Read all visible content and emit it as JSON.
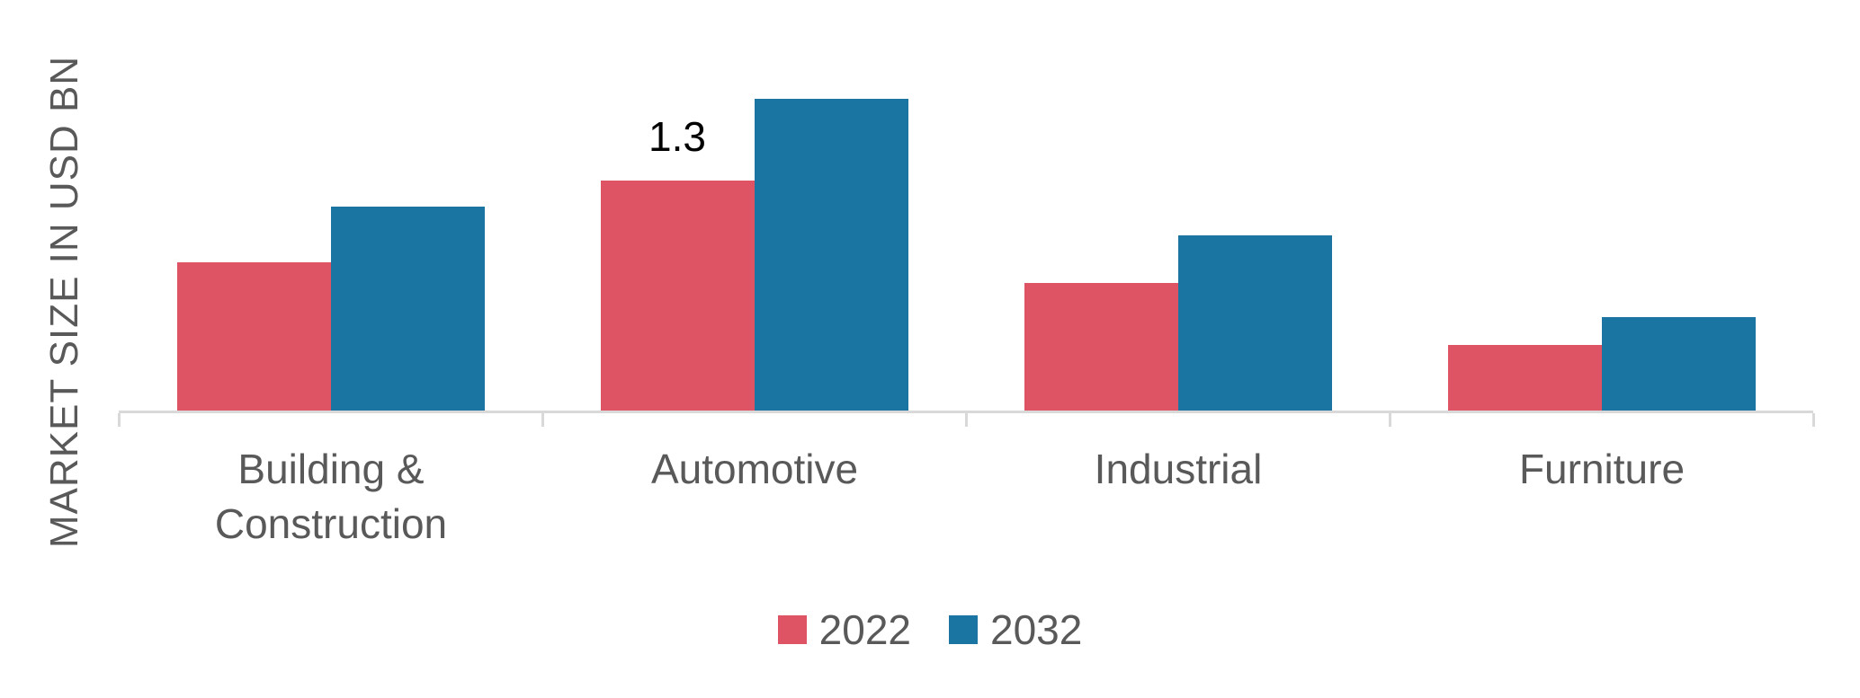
{
  "chart_data": {
    "type": "bar",
    "title": "",
    "ylabel": "MARKET SIZE IN USD BN",
    "xlabel": "",
    "categories": [
      "Building & Construction",
      "Automotive",
      "Industrial",
      "Furniture"
    ],
    "series": [
      {
        "name": "2022",
        "color": "#DE5465",
        "values": [
          0.84,
          1.3,
          0.72,
          0.37
        ]
      },
      {
        "name": "2032",
        "color": "#1B75A3",
        "values": [
          1.15,
          1.76,
          0.99,
          0.53
        ]
      }
    ],
    "data_labels": [
      {
        "series": "2022",
        "category": "Automotive",
        "text": "1.3"
      }
    ],
    "ylim": [
      0,
      2.0
    ],
    "y_axis_ticks_visible": false,
    "grid": false,
    "legend_position": "bottom",
    "axis_color": "#D9D9D9",
    "text_color": "#595959",
    "data_label_color": "#000000"
  }
}
